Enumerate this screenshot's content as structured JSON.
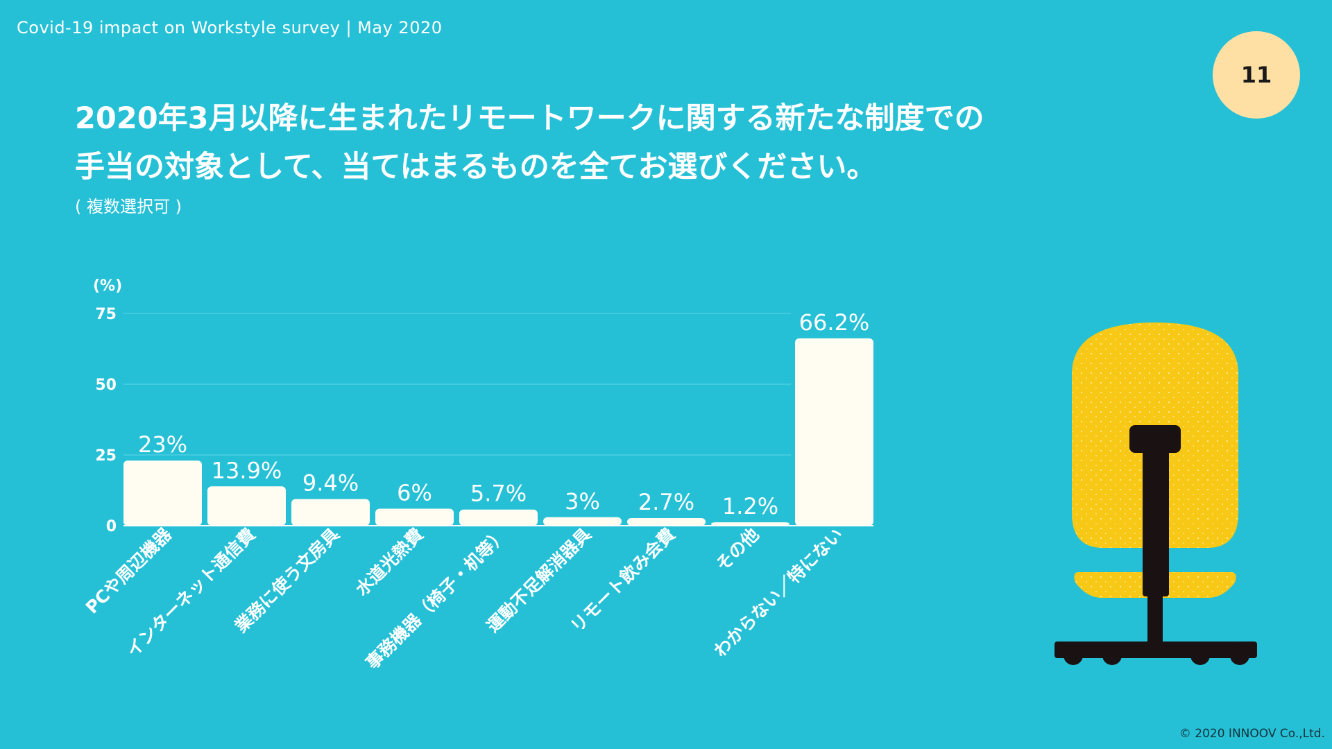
{
  "header": {
    "survey_label": "Covid-19 impact on Workstyle survey | May 2020",
    "page_number": "11"
  },
  "question": {
    "title_line1": "2020年3月以降に生まれたリモートワークに関する新たな制度での",
    "title_line2": "手当の対象として、当てはまるものを全てお選びください。",
    "note": "( 複数選択可 )"
  },
  "chart_data": {
    "type": "bar",
    "ylabel": "(%)",
    "ylim": [
      0,
      75
    ],
    "yticks": [
      0,
      25,
      50,
      75
    ],
    "grid": true,
    "categories": [
      "PCや周辺機器",
      "インターネット通信費",
      "業務に使う文房具",
      "水道光熱費",
      "事務機器（椅子・机等）",
      "運動不足解消器具",
      "リモート飲み会費",
      "その他",
      "わからない／特にない"
    ],
    "values": [
      23,
      13.9,
      9.4,
      6,
      5.7,
      3,
      2.7,
      1.2,
      66.2
    ],
    "value_labels": [
      "23%",
      "13.9%",
      "9.4%",
      "6%",
      "5.7%",
      "3%",
      "2.7%",
      "1.2%",
      "66.2%"
    ],
    "colors": {
      "bar": "#fffdf2",
      "grid": "#4fcde0",
      "background": "#26c0d6"
    }
  },
  "illustration": {
    "icon": "office-chair-icon",
    "seat_color": "#f7c815",
    "frame_color": "#1a1112"
  },
  "footer": {
    "copyright": "© 2020 INNOOV Co.,Ltd."
  }
}
